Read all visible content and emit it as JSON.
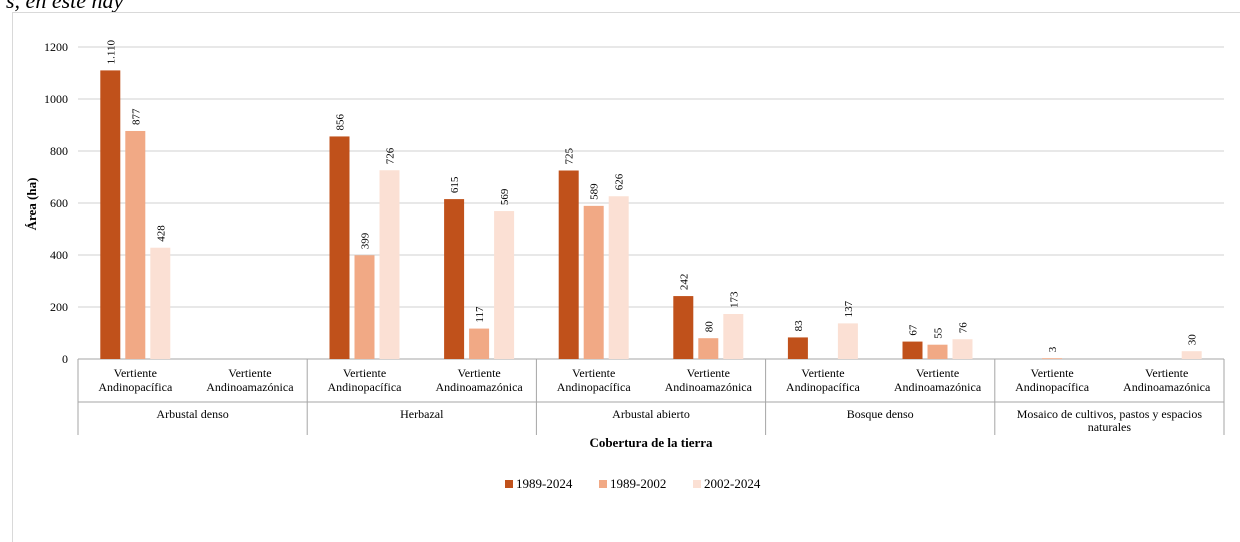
{
  "page_top_text": "s, en este hay",
  "chart_data": {
    "type": "bar",
    "ylabel": "Área (ha)",
    "xlabel": "Cobertura de la tierra",
    "ylim": [
      0,
      1200
    ],
    "yticks": [
      "0",
      "200",
      "400",
      "600",
      "800",
      "1000",
      "1200"
    ],
    "grid": true,
    "legend_position": "bottom",
    "groups": [
      {
        "label": "Arbustal denso",
        "categories": [
          "Vertiente Andinopacífica",
          "Vertiente Andinoamazónica"
        ]
      },
      {
        "label": "Herbazal",
        "categories": [
          "Vertiente Andinopacífica",
          "Vertiente Andinoamazónica"
        ]
      },
      {
        "label": "Arbustal abierto",
        "categories": [
          "Vertiente Andinopacífica",
          "Vertiente Andinoamazónica"
        ]
      },
      {
        "label": "Bosque denso",
        "categories": [
          "Vertiente Andinopacífica",
          "Vertiente Andinoamazónica"
        ]
      },
      {
        "label": "Mosaico de cultivos, pastos y espacios naturales",
        "categories": [
          "Vertiente Andinopacífica",
          "Vertiente Andinoamazónica"
        ]
      }
    ],
    "series": [
      {
        "name": "1989-2024",
        "color": "#c0511b",
        "values": [
          1110,
          null,
          856,
          615,
          725,
          242,
          83,
          67,
          null,
          null
        ],
        "labels": [
          "1.110",
          "",
          "856",
          "615",
          "725",
          "242",
          "83",
          "67",
          "",
          ""
        ]
      },
      {
        "name": "1989-2002",
        "color": "#f1a985",
        "values": [
          877,
          null,
          399,
          117,
          589,
          80,
          null,
          55,
          3,
          null
        ],
        "labels": [
          "877",
          "",
          "399",
          "117",
          "589",
          "80",
          "",
          "55",
          "3",
          ""
        ]
      },
      {
        "name": "2002-2024",
        "color": "#fbe0d4",
        "values": [
          428,
          null,
          726,
          569,
          626,
          173,
          137,
          76,
          null,
          30
        ],
        "labels": [
          "428",
          "",
          "726",
          "569",
          "626",
          "173",
          "137",
          "76",
          "",
          "30"
        ]
      }
    ]
  }
}
